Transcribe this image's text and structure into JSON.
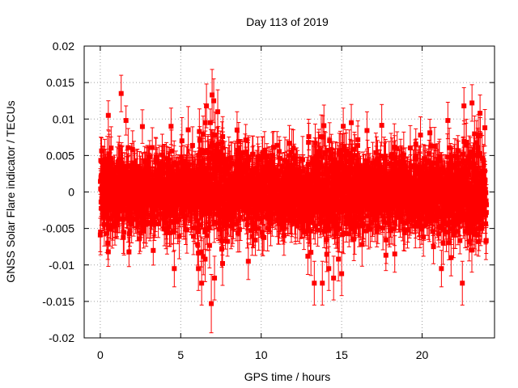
{
  "chart_data": {
    "type": "scatter",
    "title": "Day 113 of 2019",
    "xlabel": "GPS time / hours",
    "ylabel": "GNSS Solar Flare indicator / TECUs",
    "xlim": [
      -1,
      24.5
    ],
    "ylim": [
      -0.02,
      0.02
    ],
    "xticks": [
      0,
      5,
      10,
      15,
      20
    ],
    "xtick_labels": [
      "0",
      "5",
      "10",
      "15",
      "20"
    ],
    "yticks": [
      -0.02,
      -0.015,
      -0.01,
      -0.005,
      0,
      0.005,
      0.01,
      0.015,
      0.02
    ],
    "ytick_labels": [
      "-0.02",
      "-0.015",
      "-0.01",
      "-0.005",
      "0",
      "0.005",
      "0.01",
      "0.015",
      "0.02"
    ],
    "grid": true,
    "legend": "none",
    "marker": "square",
    "error_bars": true,
    "color": "#ff0000",
    "x_sampling_hours": 0.0083333,
    "x_range_hours": [
      0,
      24
    ],
    "typical_value_spread": [
      -0.006,
      0.006
    ],
    "typical_error_bar": 0.0025,
    "notable_points": [
      {
        "x": 1.3,
        "y": 0.0135,
        "err": 0.0025
      },
      {
        "x": 0.5,
        "y": 0.0105,
        "err": 0.002
      },
      {
        "x": 1.6,
        "y": 0.0098,
        "err": 0.002
      },
      {
        "x": 6.95,
        "y": 0.0133,
        "err": 0.0035
      },
      {
        "x": 7.05,
        "y": 0.0125,
        "err": 0.003
      },
      {
        "x": 6.6,
        "y": 0.0118,
        "err": 0.003
      },
      {
        "x": 7.3,
        "y": 0.011,
        "err": 0.003
      },
      {
        "x": 6.9,
        "y": -0.0153,
        "err": 0.004
      },
      {
        "x": 6.3,
        "y": -0.0125,
        "err": 0.003
      },
      {
        "x": 7.1,
        "y": -0.0118,
        "err": 0.003
      },
      {
        "x": 6.1,
        "y": -0.0105,
        "err": 0.003
      },
      {
        "x": 7.6,
        "y": -0.0098,
        "err": 0.003
      },
      {
        "x": 4.6,
        "y": -0.0105,
        "err": 0.0025
      },
      {
        "x": 0.5,
        "y": -0.0082,
        "err": 0.002
      },
      {
        "x": 13.3,
        "y": -0.0125,
        "err": 0.003
      },
      {
        "x": 13.8,
        "y": -0.0125,
        "err": 0.003
      },
      {
        "x": 14.5,
        "y": -0.0118,
        "err": 0.003
      },
      {
        "x": 14.2,
        "y": -0.0105,
        "err": 0.003
      },
      {
        "x": 15.0,
        "y": -0.0112,
        "err": 0.003
      },
      {
        "x": 14.8,
        "y": -0.0092,
        "err": 0.003
      },
      {
        "x": 12.9,
        "y": -0.0088,
        "err": 0.0025
      },
      {
        "x": 15.6,
        "y": 0.0095,
        "err": 0.0025
      },
      {
        "x": 15.1,
        "y": 0.009,
        "err": 0.0025
      },
      {
        "x": 8.5,
        "y": 0.0085,
        "err": 0.0025
      },
      {
        "x": 4.4,
        "y": 0.009,
        "err": 0.0025
      },
      {
        "x": 21.2,
        "y": -0.0105,
        "err": 0.0025
      },
      {
        "x": 22.5,
        "y": -0.0125,
        "err": 0.003
      },
      {
        "x": 21.8,
        "y": -0.009,
        "err": 0.0025
      },
      {
        "x": 23.5,
        "y": -0.0068,
        "err": 0.002
      },
      {
        "x": 22.6,
        "y": 0.0118,
        "err": 0.0025
      },
      {
        "x": 23.1,
        "y": 0.0122,
        "err": 0.0025
      },
      {
        "x": 23.6,
        "y": 0.0108,
        "err": 0.0025
      },
      {
        "x": 21.6,
        "y": 0.0098,
        "err": 0.0025
      },
      {
        "x": 23.9,
        "y": 0.0088,
        "err": 0.0025
      },
      {
        "x": 9.2,
        "y": -0.0095,
        "err": 0.0025
      },
      {
        "x": 18.3,
        "y": -0.0085,
        "err": 0.0025
      },
      {
        "x": 19.9,
        "y": 0.0078,
        "err": 0.0025
      }
    ]
  }
}
